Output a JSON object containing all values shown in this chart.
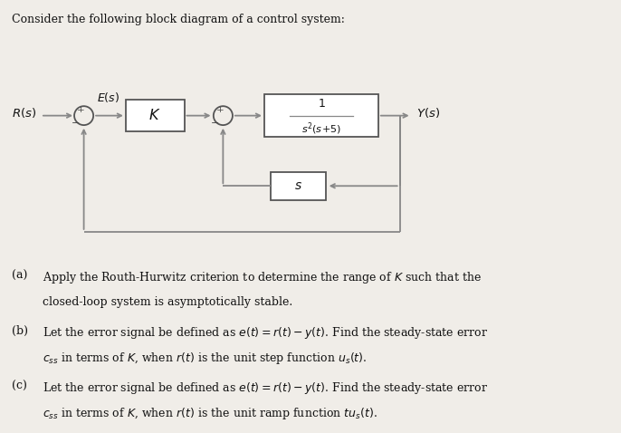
{
  "title_text": "Consider the following block diagram of a control system:",
  "bg_color": "#f0ede8",
  "block_color": "#ffffff",
  "block_edge_color": "#555555",
  "line_color": "#888888",
  "text_color": "#111111",
  "sign_color": "#444444",
  "diagram": {
    "R_label": "$R(s)$",
    "E_label": "$E(s)$",
    "Y_label": "$Y(s)$",
    "K_label": "$K$",
    "s_label": "$s$"
  },
  "questions": [
    {
      "label": "(a)",
      "line1": "Apply the Routh-Hurwitz criterion to determine the range of $K$ such that the",
      "line2": "closed-loop system is asymptotically stable."
    },
    {
      "label": "(b)",
      "line1": "Let the error signal be defined as $e(t) = r(t) - y(t)$. Find the steady-state error",
      "line2": "$c_{ss}$ in terms of $K$, when $r(t)$ is the unit step function $u_s(t)$."
    },
    {
      "label": "(c)",
      "line1": "Let the error signal be defined as $e(t) = r(t) - y(t)$. Find the steady-state error",
      "line2": "$c_{ss}$ in terms of $K$, when $r(t)$ is the unit ramp function $tu_s(t)$."
    }
  ],
  "ylim": [
    0,
    7
  ],
  "xlim": [
    0,
    10
  ]
}
